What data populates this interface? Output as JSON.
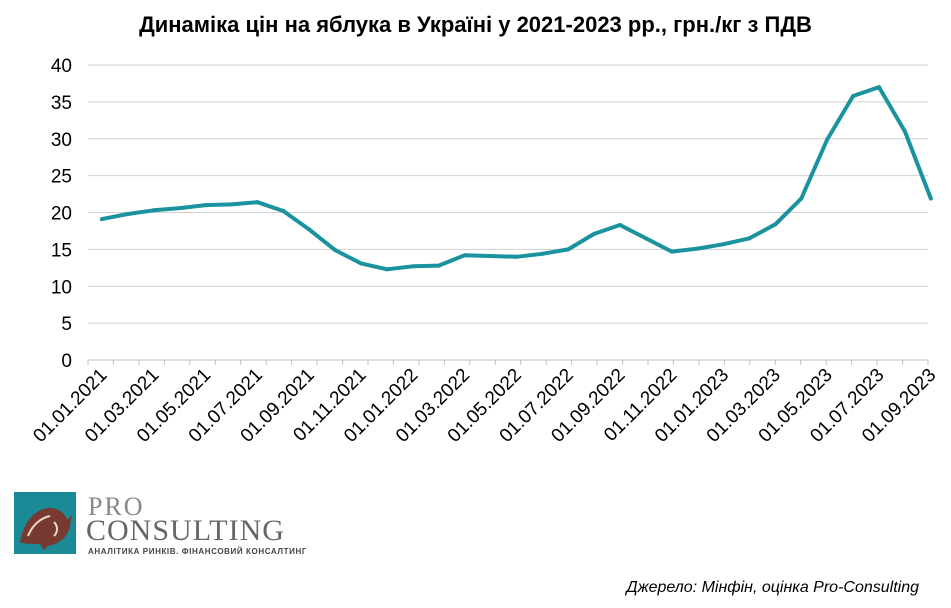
{
  "chart_data": {
    "type": "line",
    "title": "Динаміка цін на яблука в Україні у 2021-2023 рр., грн./кг з ПДВ",
    "xlabel": "",
    "ylabel": "",
    "ylim": [
      0,
      40
    ],
    "yticks": [
      "0",
      "5",
      "10",
      "15",
      "20",
      "25",
      "30",
      "35",
      "40"
    ],
    "grid": true,
    "legend": "none",
    "line_color": "#1a939f",
    "x_tick_labels": [
      "01.01.2021",
      "01.03.2021",
      "01.05.2021",
      "01.07.2021",
      "01.09.2021",
      "01.11.2021",
      "01.01.2022",
      "01.03.2022",
      "01.05.2022",
      "01.07.2022",
      "01.09.2022",
      "01.11.2022",
      "01.01.2023",
      "01.03.2023",
      "01.05.2023",
      "01.07.2023",
      "01.09.2023"
    ],
    "series": [
      {
        "x": [
          "01.01.2021",
          "01.02.2021",
          "01.03.2021",
          "01.04.2021",
          "01.05.2021",
          "01.06.2021",
          "01.07.2021",
          "01.08.2021",
          "01.09.2021",
          "01.10.2021",
          "01.11.2021",
          "01.12.2021",
          "01.01.2022",
          "01.02.2022",
          "01.03.2022",
          "01.04.2022",
          "01.05.2022",
          "01.06.2022",
          "01.07.2022",
          "01.08.2022",
          "01.09.2022",
          "01.10.2022",
          "01.11.2022",
          "01.12.2022",
          "01.01.2023",
          "01.02.2023",
          "01.03.2023",
          "01.04.2023",
          "01.05.2023",
          "01.06.2023",
          "01.07.2023",
          "01.08.2023",
          "01.09.2023"
        ],
        "values": [
          19.1,
          19.8,
          20.3,
          20.6,
          21.0,
          21.1,
          21.4,
          20.2,
          17.7,
          14.9,
          13.1,
          12.3,
          12.7,
          12.8,
          14.2,
          14.1,
          14.0,
          14.4,
          15.0,
          17.1,
          18.3,
          16.5,
          14.7,
          15.1,
          15.7,
          16.5,
          18.4,
          21.9,
          29.9,
          35.8,
          37.0,
          31.0,
          21.9
        ]
      }
    ]
  },
  "logo": {
    "pro": "PRO",
    "consulting": "CONSULTING",
    "tagline": "АНАЛІТИКА РИНКІВ. ФІНАНСОВИЙ КОНСАЛТИНГ"
  },
  "source": "Джерело: Мінфін, оцінка Pro-Consulting"
}
